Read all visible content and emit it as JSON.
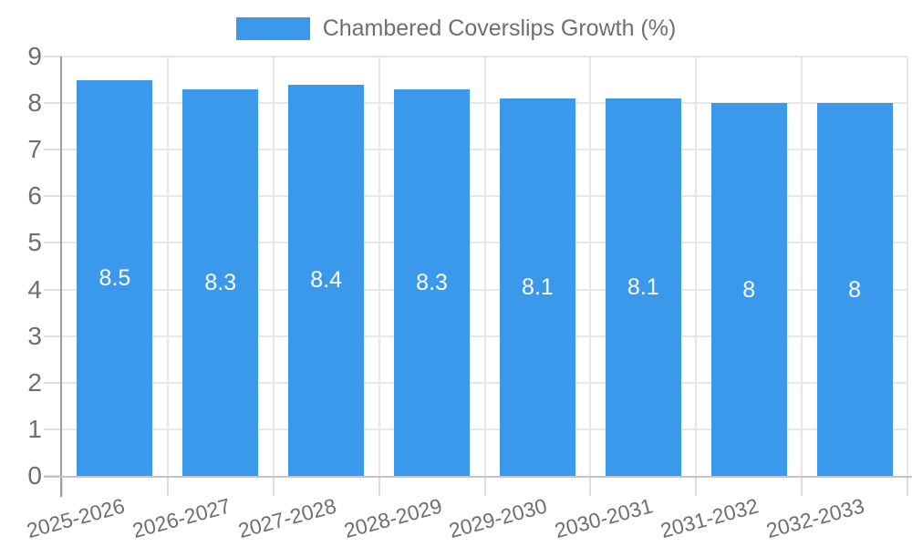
{
  "legend": {
    "label": "Chambered Coverslips Growth (%)"
  },
  "chart_data": {
    "type": "bar",
    "title": "Chambered Coverslips Growth (%)",
    "categories": [
      "2025-2026",
      "2026-2027",
      "2027-2028",
      "2028-2029",
      "2029-2030",
      "2030-2031",
      "2031-2032",
      "2032-2033"
    ],
    "series": [
      {
        "name": "Chambered Coverslips Growth (%)",
        "values": [
          8.5,
          8.3,
          8.4,
          8.3,
          8.1,
          8.1,
          8,
          8
        ]
      }
    ],
    "value_labels": [
      "8.5",
      "8.3",
      "8.4",
      "8.3",
      "8.1",
      "8.1",
      "8",
      "8"
    ],
    "xlabel": "",
    "ylabel": "",
    "ylim": [
      0,
      9
    ],
    "y_ticks": [
      0,
      1,
      2,
      3,
      4,
      5,
      6,
      7,
      8,
      9
    ],
    "grid": true,
    "legend_position": "top-center",
    "x_label_rotation_deg": -15,
    "colors": {
      "bar": "#3b99ec",
      "bar_label": "#ffffff",
      "text": "#6f6f6f",
      "grid": "#e7e7e7",
      "tick": "#dedede",
      "axis_line": "#9e9e9e",
      "baseline": "#c4c4c4",
      "background": "#ffffff"
    }
  }
}
